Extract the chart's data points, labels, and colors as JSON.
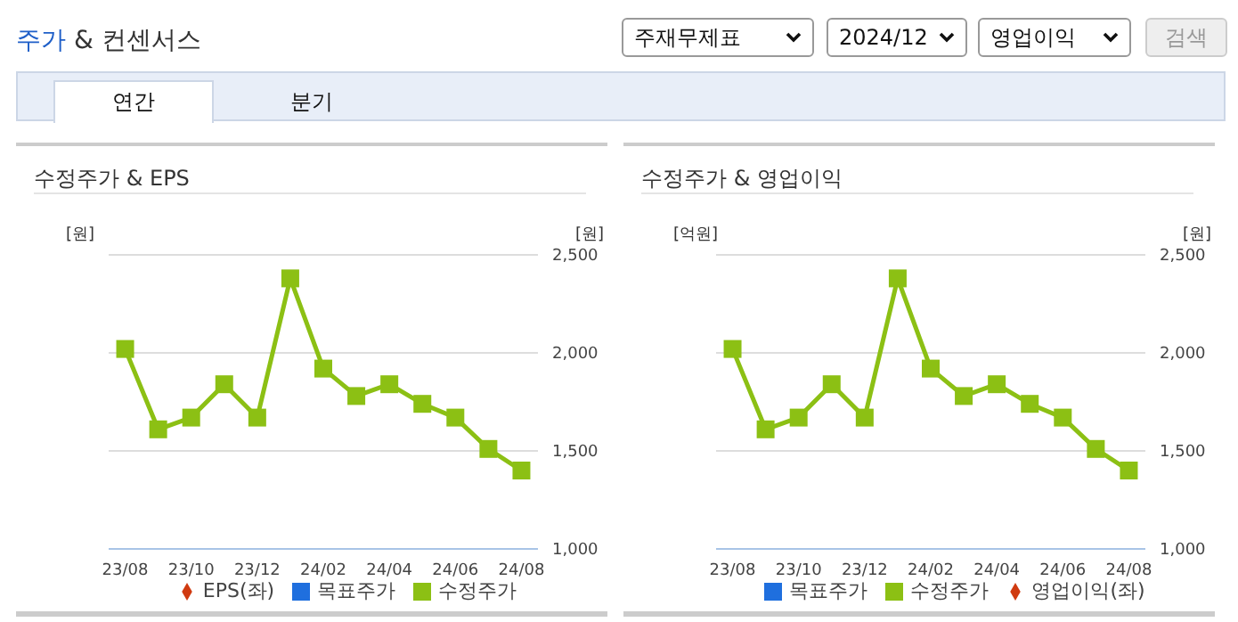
{
  "chart_data": [
    {
      "type": "other",
      "title": "주가 & 컨센서스",
      "annotations": [
        "주재무제표",
        "2024/12",
        "영업이익",
        "검색",
        "연간",
        "분기"
      ]
    },
    {
      "type": "line",
      "title": "수정주가 & EPS",
      "ylabel": "[원]",
      "y2label": "[원]",
      "categories": [
        "23/08",
        null,
        "23/10",
        null,
        "23/12",
        null,
        "24/02",
        null,
        "24/04",
        null,
        "24/06",
        null,
        "24/08"
      ],
      "series": [
        {
          "name": "목표주가",
          "type": "bar",
          "color": "#1f6fde",
          "values": [
            null,
            null,
            null,
            null,
            null,
            null,
            null,
            null,
            null,
            null,
            null,
            null,
            null
          ]
        },
        {
          "name": "EPS(좌)",
          "type": "line",
          "color": "#d03a10",
          "marker": "diamond",
          "values": [
            null,
            null,
            null,
            null,
            null,
            null,
            null,
            null,
            null,
            null,
            null,
            null,
            null
          ]
        },
        {
          "name": "수정주가",
          "type": "line",
          "color": "#8cc014",
          "marker": "square",
          "axis": "y2",
          "values": [
            2020,
            1610,
            1670,
            1840,
            1670,
            2380,
            1920,
            1780,
            1840,
            1740,
            1670,
            1510,
            1400
          ]
        }
      ],
      "y2lim": [
        1000,
        2500
      ],
      "y2ticks": [
        {
          "value": 1000,
          "label": "1,000"
        },
        {
          "value": 1500,
          "label": "1,500"
        },
        {
          "value": 2000,
          "label": "2,000"
        },
        {
          "value": 2500,
          "label": "2,500"
        }
      ],
      "grid": "y",
      "legend": "bottom"
    },
    {
      "type": "line",
      "title": "수정주가 & 영업이익",
      "ylabel": "[억원]",
      "y2label": "[원]",
      "categories": [
        "23/08",
        null,
        "23/10",
        null,
        "23/12",
        null,
        "24/02",
        null,
        "24/04",
        null,
        "24/06",
        null,
        "24/08"
      ],
      "series": [
        {
          "name": "목표주가",
          "type": "bar",
          "color": "#1f6fde",
          "values": [
            null,
            null,
            null,
            null,
            null,
            null,
            null,
            null,
            null,
            null,
            null,
            null,
            null
          ]
        },
        {
          "name": "영업이익(좌)",
          "type": "line",
          "color": "#d03a10",
          "marker": "diamond",
          "values": [
            null,
            null,
            null,
            null,
            null,
            null,
            null,
            null,
            null,
            null,
            null,
            null,
            null
          ]
        },
        {
          "name": "수정주가",
          "type": "line",
          "color": "#8cc014",
          "marker": "square",
          "axis": "y2",
          "values": [
            2020,
            1610,
            1670,
            1840,
            1670,
            2380,
            1920,
            1780,
            1840,
            1740,
            1670,
            1510,
            1400
          ]
        }
      ],
      "y2lim": [
        1000,
        2500
      ],
      "y2ticks": [
        {
          "value": 1000,
          "label": "1,000"
        },
        {
          "value": 1500,
          "label": "1,500"
        },
        {
          "value": 2000,
          "label": "2,000"
        },
        {
          "value": 2500,
          "label": "2,500"
        }
      ],
      "grid": "y",
      "legend": "bottom"
    }
  ]
}
